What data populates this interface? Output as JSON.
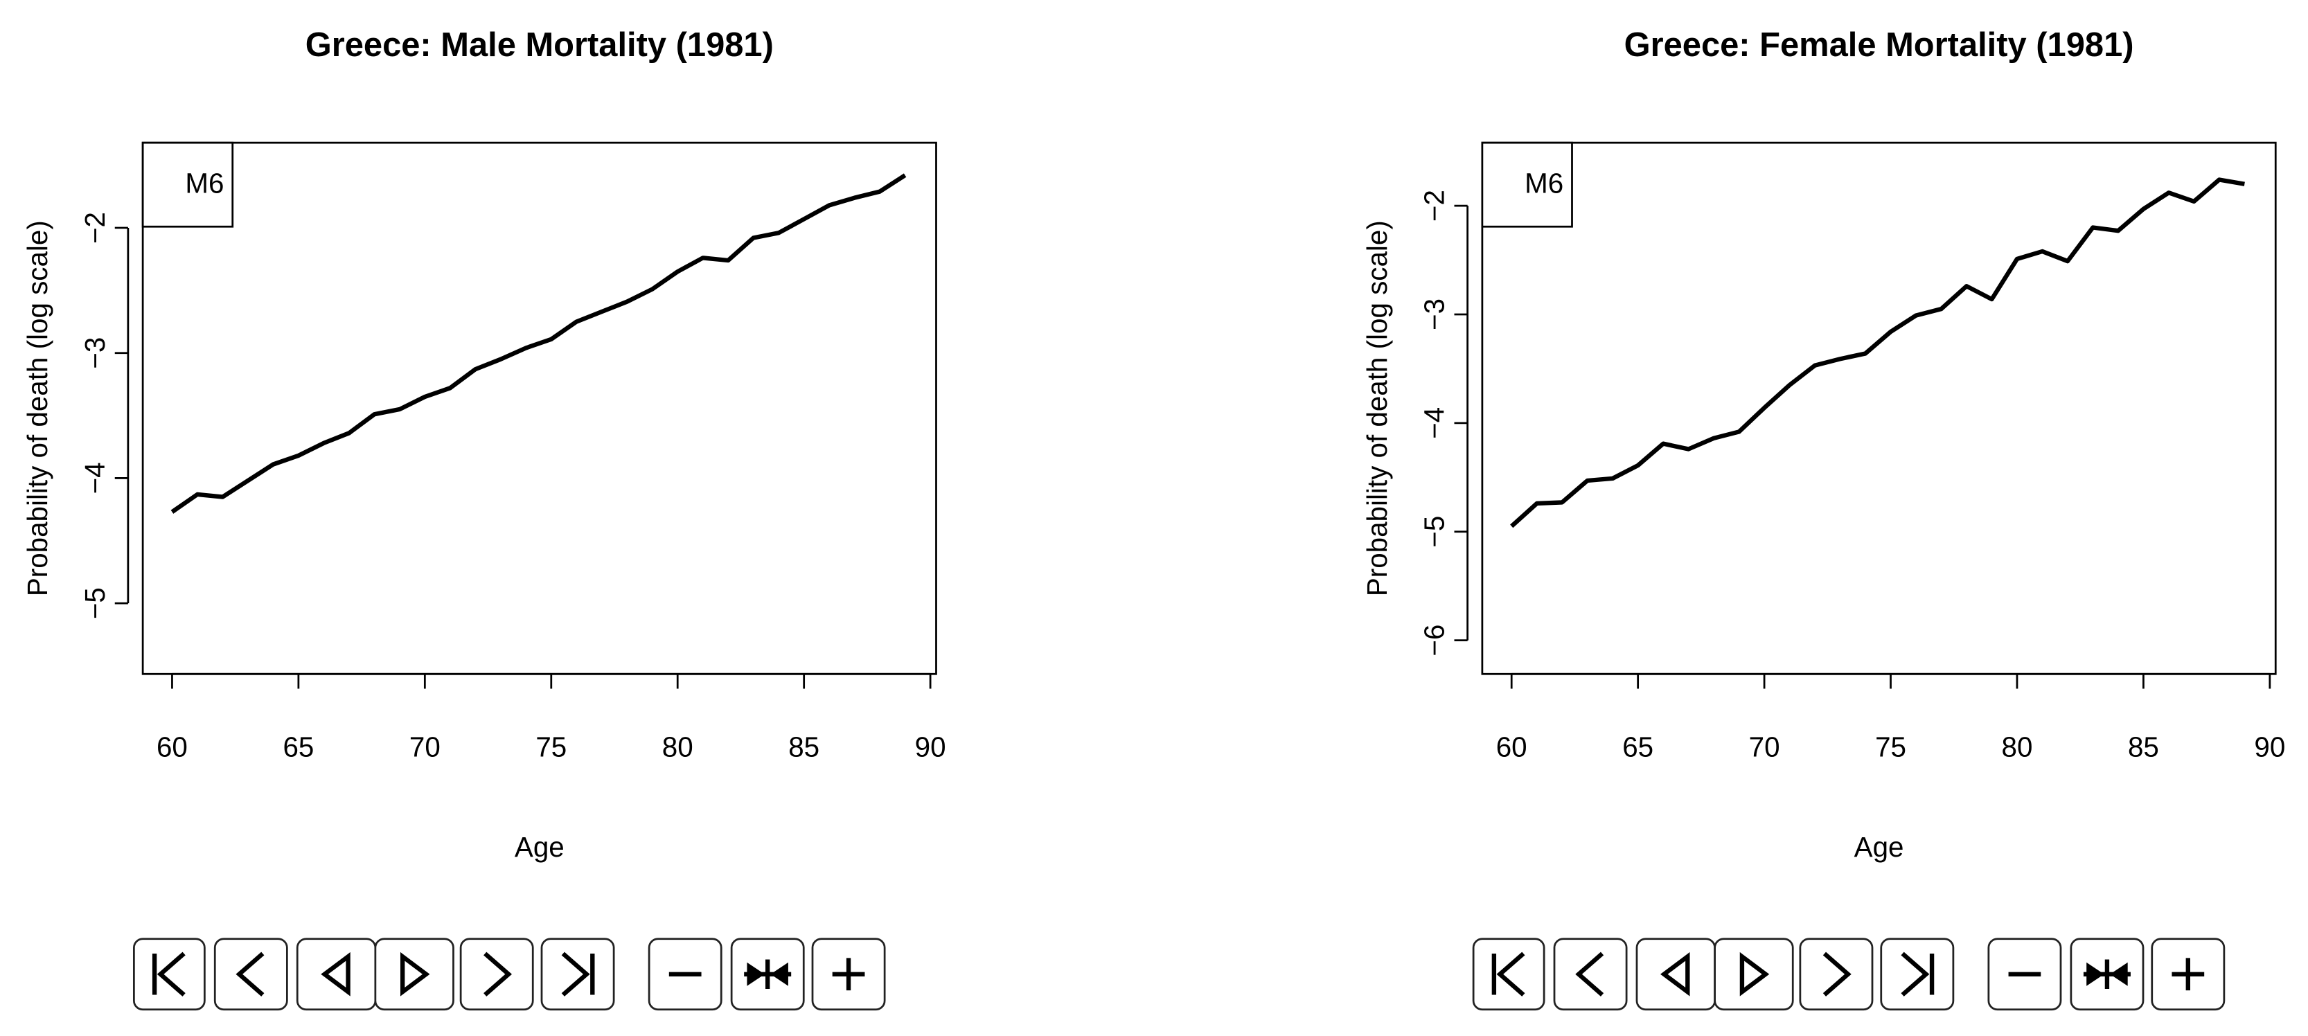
{
  "chart_data": [
    {
      "type": "line",
      "title": "Greece: Male Mortality (1981)",
      "xlabel": "Age",
      "ylabel": "Probability of death (log scale)",
      "x": [
        60,
        61,
        62,
        63,
        64,
        65,
        66,
        67,
        68,
        69,
        70,
        71,
        72,
        73,
        74,
        75,
        76,
        77,
        78,
        79,
        80,
        81,
        82,
        83,
        84,
        85,
        86,
        87,
        88,
        89
      ],
      "series": [
        {
          "name": "M6",
          "color": "#000000",
          "values": [
            -4.27,
            -4.13,
            -4.15,
            -4.02,
            -3.89,
            -3.82,
            -3.72,
            -3.64,
            -3.49,
            -3.45,
            -3.35,
            -3.28,
            -3.13,
            -3.05,
            -2.96,
            -2.89,
            -2.75,
            -2.67,
            -2.59,
            -2.49,
            -2.35,
            -2.24,
            -2.26,
            -2.08,
            -2.04,
            -1.93,
            -1.82,
            -1.76,
            -1.71,
            -1.58
          ]
        }
      ],
      "xlim": [
        58.84,
        90.23
      ],
      "ylim": [
        -5.565,
        -1.32
      ],
      "xticks": [
        60,
        65,
        70,
        75,
        80,
        85,
        90
      ],
      "yticks": [
        {
          "value": -5,
          "label": "−5"
        },
        {
          "value": -4,
          "label": "−4"
        },
        {
          "value": -3,
          "label": "−3"
        },
        {
          "value": -2,
          "label": "−2"
        }
      ],
      "legend": "topleft"
    },
    {
      "type": "line",
      "title": "Greece: Female Mortality (1981)",
      "xlabel": "Age",
      "ylabel": "Probability of death (log scale)",
      "x": [
        60,
        61,
        62,
        63,
        64,
        65,
        66,
        67,
        68,
        69,
        70,
        71,
        72,
        73,
        74,
        75,
        76,
        77,
        78,
        79,
        80,
        81,
        82,
        83,
        84,
        85,
        86,
        87,
        88,
        89
      ],
      "series": [
        {
          "name": "M6",
          "color": "#000000",
          "values": [
            -4.95,
            -4.74,
            -4.73,
            -4.53,
            -4.51,
            -4.39,
            -4.19,
            -4.24,
            -4.14,
            -4.08,
            -3.86,
            -3.65,
            -3.47,
            -3.41,
            -3.36,
            -3.16,
            -3.01,
            -2.95,
            -2.74,
            -2.86,
            -2.49,
            -2.42,
            -2.51,
            -2.2,
            -2.23,
            -2.03,
            -1.88,
            -1.96,
            -1.76,
            -1.8
          ]
        }
      ],
      "xlim": [
        58.84,
        90.23
      ],
      "ylim": [
        -6.31,
        -1.42
      ],
      "xticks": [
        60,
        65,
        70,
        75,
        80,
        85,
        90
      ],
      "yticks": [
        {
          "value": -6,
          "label": "−6"
        },
        {
          "value": -5,
          "label": "−5"
        },
        {
          "value": -4,
          "label": "−4"
        },
        {
          "value": -3,
          "label": "−3"
        },
        {
          "value": -2,
          "label": "−2"
        }
      ],
      "legend": "topleft"
    }
  ]
}
